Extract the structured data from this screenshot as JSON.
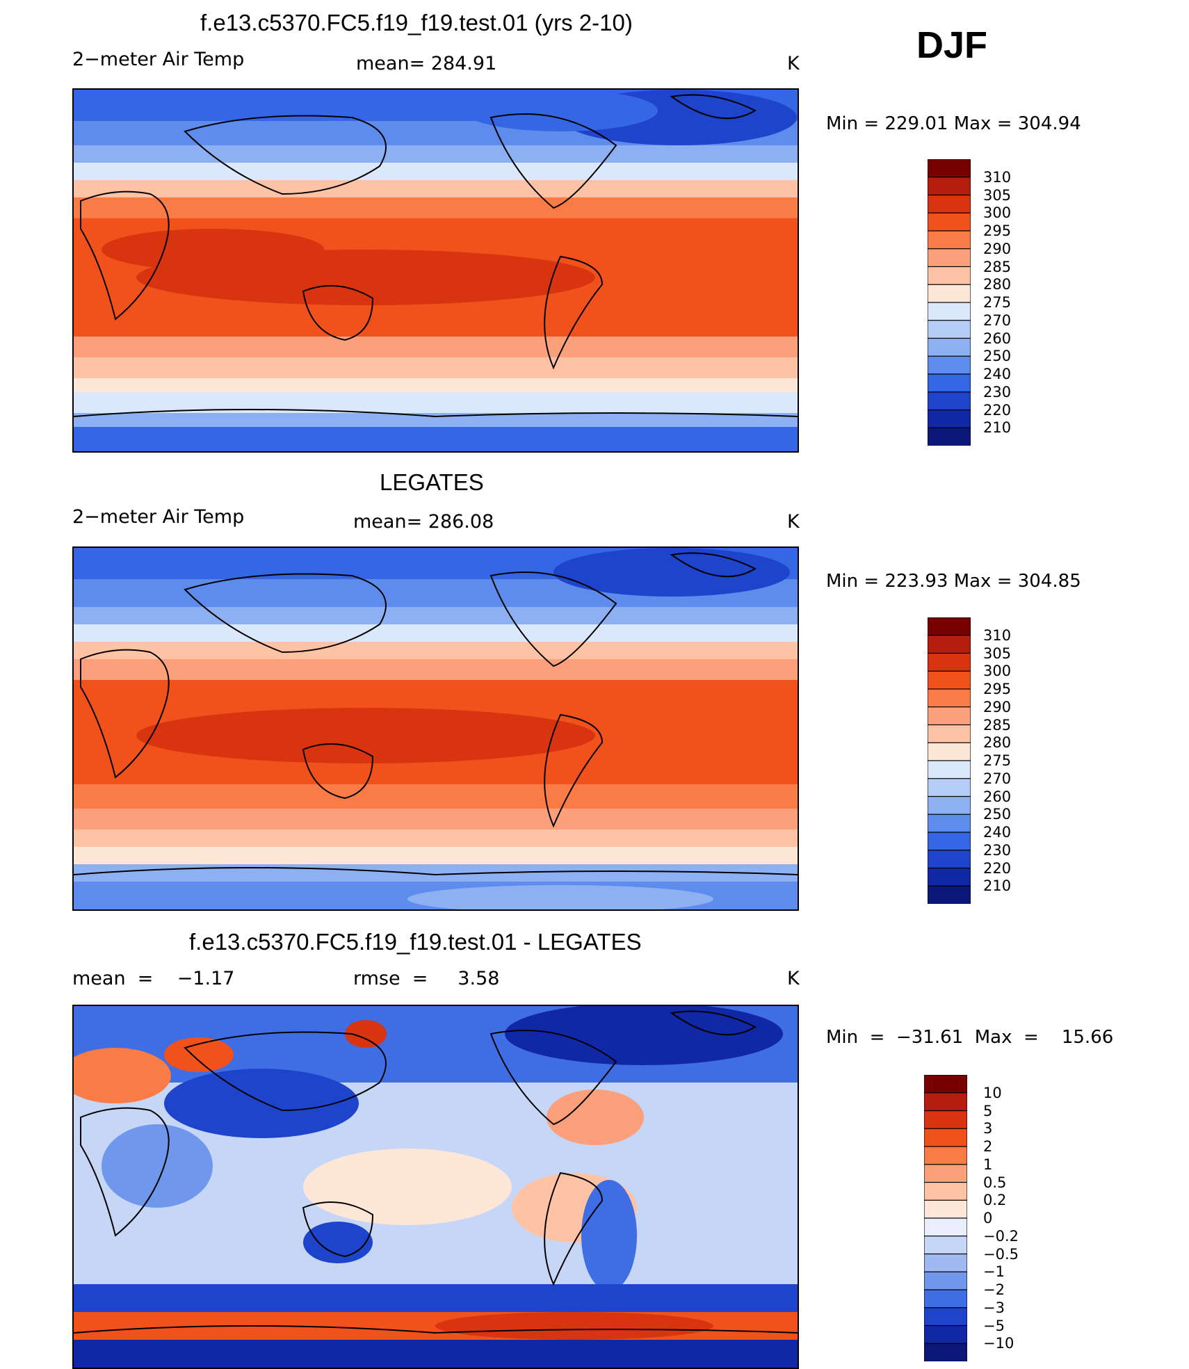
{
  "season": "DJF",
  "panels": [
    {
      "id": "model",
      "title": "f.e13.c5370.FC5.f19_f19.test.01 (yrs 2-10)",
      "left_label": "2−meter Air Temp",
      "center_label": "mean=  284.91",
      "unit": "K",
      "minmax": "Min  =  229.01  Max  =  304.94",
      "colorbar": [
        "310",
        "305",
        "300",
        "295",
        "290",
        "285",
        "280",
        "275",
        "270",
        "260",
        "250",
        "240",
        "230",
        "220",
        "210"
      ]
    },
    {
      "id": "obs",
      "title": "LEGATES",
      "left_label": "2−meter Air Temp",
      "center_label": "mean=  286.08",
      "unit": "K",
      "minmax": "Min  =  223.93  Max  =  304.85",
      "colorbar": [
        "310",
        "305",
        "300",
        "295",
        "290",
        "285",
        "280",
        "275",
        "270",
        "260",
        "250",
        "240",
        "230",
        "220",
        "210"
      ]
    },
    {
      "id": "diff",
      "title": "f.e13.c5370.FC5.f19_f19.test.01 - LEGATES",
      "left_label": "mean  =    −1.17",
      "center_label": "rmse  =     3.58",
      "unit": "K",
      "minmax": "Min  =  −31.61  Max  =    15.66",
      "colorbar": [
        "10",
        "5",
        "3",
        "2",
        "1",
        "0.5",
        "0.2",
        "0",
        "−0.2",
        "−0.5",
        "−1",
        "−2",
        "−3",
        "−5",
        "−10"
      ]
    }
  ],
  "colors": {
    "temp_scale": [
      "#780000",
      "#b51e0e",
      "#d8340f",
      "#f1521c",
      "#f97b46",
      "#fba07a",
      "#fdc3a4",
      "#fee7d6",
      "#dbe7fb",
      "#b5cdf7",
      "#8db0f2",
      "#5d8cec",
      "#3566e4",
      "#1f44cc",
      "#1028a6",
      "#0a1778"
    ],
    "diff_scale": [
      "#780000",
      "#b51e0e",
      "#d8340f",
      "#f1521c",
      "#f97b46",
      "#fba07a",
      "#fdc3a4",
      "#fee7d6",
      "#e8eefb",
      "#c6d6f7",
      "#9fbaf2",
      "#6f97ec",
      "#3f6de4",
      "#1f44cc",
      "#1028a6",
      "#0a1778"
    ]
  }
}
